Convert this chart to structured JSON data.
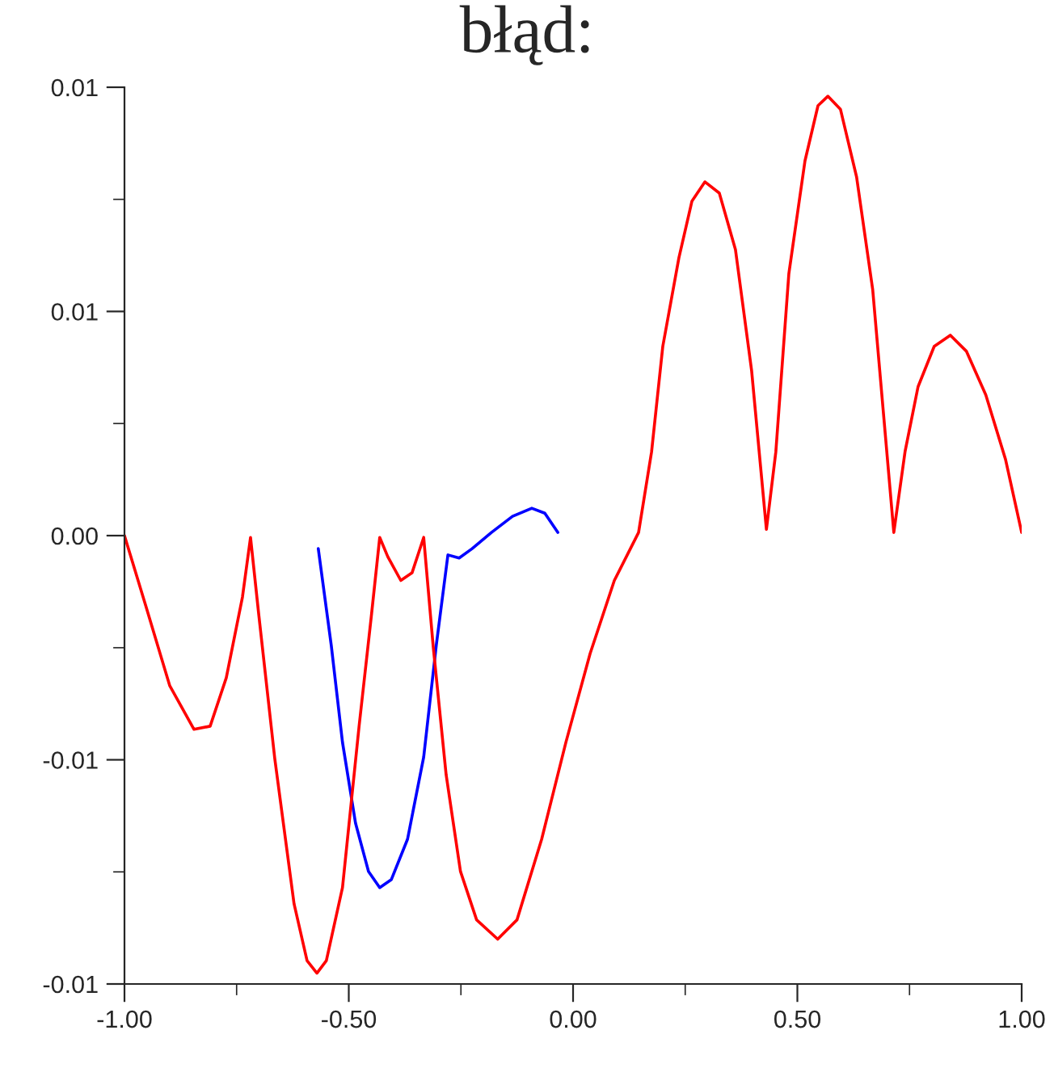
{
  "chart_data": {
    "type": "line",
    "title": "błąd:",
    "xlim": [
      -1,
      1
    ],
    "ylim": [
      -0.01,
      0.01
    ],
    "xticks": [
      {
        "value": -1,
        "label": "-1.00"
      },
      {
        "value": -0.5,
        "label": "-0.50"
      },
      {
        "value": 0,
        "label": "0.00"
      },
      {
        "value": 0.5,
        "label": "0.50"
      },
      {
        "value": 1,
        "label": "1.00"
      }
    ],
    "yticks": [
      {
        "value": -0.01,
        "label": "-0.01"
      },
      {
        "value": -0.005,
        "label": "-0.01"
      },
      {
        "value": 0,
        "label": "0.00"
      },
      {
        "value": 0.005,
        "label": "0.01"
      },
      {
        "value": 0.01,
        "label": "0.01"
      }
    ],
    "grid": false,
    "legend": false,
    "marker": "none",
    "line_style": "solid",
    "series": [
      {
        "color": "#0000ff",
        "x": [
          -0.568,
          -0.539,
          -0.514,
          -0.485,
          -0.456,
          -0.431,
          -0.405,
          -0.369,
          -0.333,
          -0.305,
          -0.279,
          -0.254,
          -0.225,
          -0.182,
          -0.135,
          -0.092,
          -0.063,
          -0.034
        ],
        "values": [
          -0.00029,
          -0.00245,
          -0.00461,
          -0.00641,
          -0.00749,
          -0.00785,
          -0.00767,
          -0.00677,
          -0.00494,
          -0.00245,
          -0.00043,
          -0.0005,
          -0.00029,
          7e-05,
          0.00043,
          0.00061,
          0.0005,
          7e-05
        ]
      },
      {
        "color": "#ff0000",
        "x": [
          -1,
          -0.953,
          -0.899,
          -0.845,
          -0.809,
          -0.773,
          -0.737,
          -0.719,
          -0.701,
          -0.665,
          -0.622,
          -0.593,
          -0.571,
          -0.55,
          -0.514,
          -0.477,
          -0.449,
          -0.431,
          -0.413,
          -0.384,
          -0.359,
          -0.333,
          -0.312,
          -0.283,
          -0.251,
          -0.215,
          -0.168,
          -0.125,
          -0.07,
          -0.016,
          0.038,
          0.092,
          0.146,
          0.175,
          0.2,
          0.236,
          0.265,
          0.294,
          0.326,
          0.362,
          0.398,
          0.431,
          0.452,
          0.481,
          0.517,
          0.546,
          0.568,
          0.596,
          0.632,
          0.668,
          0.693,
          0.715,
          0.74,
          0.769,
          0.805,
          0.841,
          0.877,
          0.92,
          0.964,
          1
        ],
        "values": [
          0,
          -0.00155,
          -0.00335,
          -0.00432,
          -0.00425,
          -0.00317,
          -0.00137,
          -4e-05,
          -0.00173,
          -0.00497,
          -0.00821,
          -0.00948,
          -0.00976,
          -0.00948,
          -0.00785,
          -0.00425,
          -0.00173,
          -4e-05,
          -0.00047,
          -0.001,
          -0.00083,
          -4e-05,
          -0.00245,
          -0.00533,
          -0.00749,
          -0.00857,
          -0.009,
          -0.00857,
          -0.00677,
          -0.00461,
          -0.00263,
          -0.001,
          7e-05,
          0.00187,
          0.00422,
          0.0062,
          0.00746,
          0.00789,
          0.00764,
          0.00638,
          0.00368,
          0.00014,
          0.00187,
          0.00584,
          0.00836,
          0.00959,
          0.0098,
          0.00951,
          0.008,
          0.00548,
          0.0026,
          7e-05,
          0.00187,
          0.00332,
          0.00422,
          0.00447,
          0.00411,
          0.00314,
          0.0017,
          7e-05
        ]
      }
    ]
  }
}
